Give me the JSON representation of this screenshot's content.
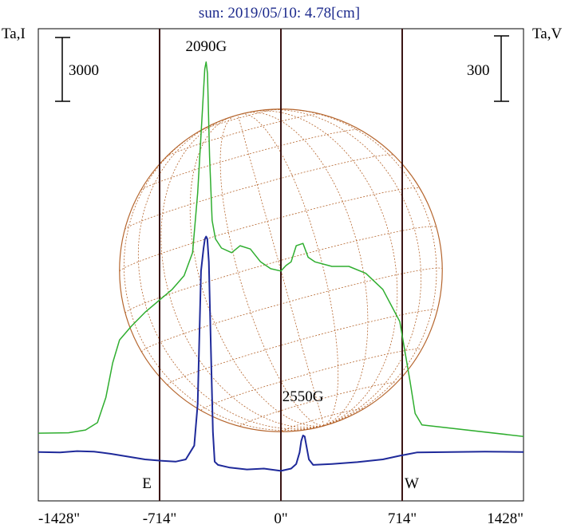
{
  "chart_data": {
    "type": "line",
    "title": "sun: 2019/05/10: 4.78[cm]",
    "left_axis_label": "Ta,I",
    "right_axis_label": "Ta,V",
    "left_scale_bar": "3000",
    "right_scale_bar": "300",
    "x_ticks": [
      {
        "value": -1428,
        "label": "-1428\""
      },
      {
        "value": -714,
        "label": "-714\""
      },
      {
        "value": 0,
        "label": "0\""
      },
      {
        "value": 714,
        "label": "714\""
      },
      {
        "value": 1428,
        "label": "1428\""
      }
    ],
    "xlim": [
      -1428,
      1428
    ],
    "limb_markers": [
      {
        "value": -714,
        "label": "E"
      },
      {
        "value": 714,
        "label": "W"
      }
    ],
    "annotations": [
      {
        "text": "2090G",
        "x": -440
      },
      {
        "text": "2550G",
        "x": 130
      }
    ],
    "solar_disk": {
      "center_x": 0,
      "radius": 950,
      "color": "#b5652d"
    },
    "series": [
      {
        "key": "I",
        "color": "#2fae2f",
        "points": [
          [
            -1428,
            97
          ],
          [
            -1250,
            98
          ],
          [
            -1150,
            104
          ],
          [
            -1080,
            120
          ],
          [
            -1030,
            175
          ],
          [
            -990,
            250
          ],
          [
            -950,
            300
          ],
          [
            -880,
            330
          ],
          [
            -800,
            360
          ],
          [
            -720,
            385
          ],
          [
            -640,
            410
          ],
          [
            -570,
            440
          ],
          [
            -520,
            490
          ],
          [
            -490,
            620
          ],
          [
            -465,
            780
          ],
          [
            -448,
            890
          ],
          [
            -440,
            905
          ],
          [
            -432,
            880
          ],
          [
            -420,
            700
          ],
          [
            -405,
            560
          ],
          [
            -385,
            520
          ],
          [
            -350,
            500
          ],
          [
            -290,
            490
          ],
          [
            -240,
            505
          ],
          [
            -180,
            498
          ],
          [
            -120,
            470
          ],
          [
            -60,
            455
          ],
          [
            0,
            450
          ],
          [
            30,
            462
          ],
          [
            60,
            470
          ],
          [
            90,
            505
          ],
          [
            130,
            510
          ],
          [
            160,
            480
          ],
          [
            200,
            470
          ],
          [
            300,
            460
          ],
          [
            400,
            460
          ],
          [
            500,
            445
          ],
          [
            600,
            410
          ],
          [
            700,
            340
          ],
          [
            760,
            210
          ],
          [
            790,
            140
          ],
          [
            830,
            115
          ],
          [
            1428,
            90
          ]
        ]
      },
      {
        "key": "V",
        "color": "#1f2a9a",
        "points": [
          [
            -1428,
            56
          ],
          [
            -1300,
            55
          ],
          [
            -1200,
            58
          ],
          [
            -1100,
            57
          ],
          [
            -1000,
            52
          ],
          [
            -900,
            46
          ],
          [
            -800,
            40
          ],
          [
            -700,
            37
          ],
          [
            -620,
            35
          ],
          [
            -560,
            40
          ],
          [
            -510,
            70
          ],
          [
            -490,
            160
          ],
          [
            -470,
            450
          ],
          [
            -455,
            500
          ],
          [
            -447,
            520
          ],
          [
            -440,
            525
          ],
          [
            -433,
            520
          ],
          [
            -424,
            470
          ],
          [
            -410,
            250
          ],
          [
            -400,
            100
          ],
          [
            -390,
            35
          ],
          [
            -370,
            28
          ],
          [
            -300,
            22
          ],
          [
            -200,
            18
          ],
          [
            -100,
            20
          ],
          [
            0,
            15
          ],
          [
            60,
            20
          ],
          [
            90,
            30
          ],
          [
            110,
            55
          ],
          [
            120,
            80
          ],
          [
            130,
            92
          ],
          [
            140,
            90
          ],
          [
            150,
            70
          ],
          [
            165,
            40
          ],
          [
            190,
            28
          ],
          [
            300,
            30
          ],
          [
            450,
            34
          ],
          [
            600,
            40
          ],
          [
            700,
            48
          ],
          [
            800,
            55
          ],
          [
            1000,
            56
          ],
          [
            1200,
            57
          ],
          [
            1428,
            56
          ]
        ]
      }
    ]
  }
}
